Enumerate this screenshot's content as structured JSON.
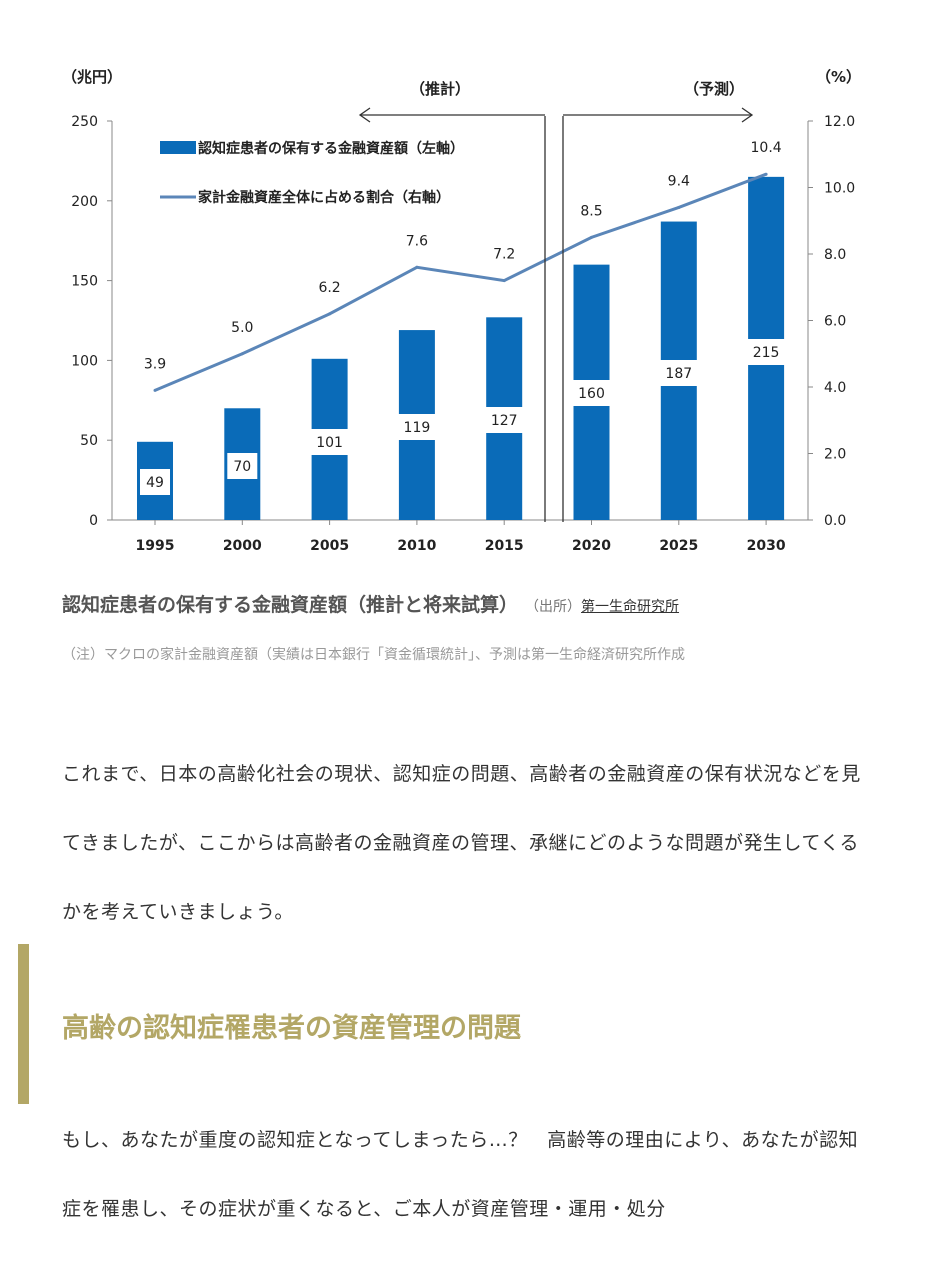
{
  "chart_data": {
    "type": "bar+line",
    "categories": [
      "1995",
      "2000",
      "2005",
      "2010",
      "2015",
      "2020",
      "2025",
      "2030"
    ],
    "series": [
      {
        "name": "認知症患者の保有する金融資産額（左軸）",
        "type": "bar",
        "axis": "left",
        "values": [
          49,
          70,
          101,
          119,
          127,
          160,
          187,
          215
        ],
        "color": "#0a6bb8"
      },
      {
        "name": "家計金融資産全体に占める割合（右軸）",
        "type": "line",
        "axis": "right",
        "values": [
          3.9,
          5.0,
          6.2,
          7.6,
          7.2,
          8.5,
          9.4,
          10.4
        ],
        "color": "#5b86b8"
      }
    ],
    "left_axis": {
      "label": "（兆円）",
      "ylim": [
        0,
        250
      ],
      "ticks": [
        "0",
        "50",
        "100",
        "150",
        "200",
        "250"
      ]
    },
    "right_axis": {
      "label": "（%）",
      "ylim": [
        0,
        12
      ],
      "ticks": [
        "0.0",
        "2.0",
        "4.0",
        "6.0",
        "8.0",
        "10.0",
        "12.0"
      ]
    },
    "annotations": {
      "estimate": "（推計）",
      "forecast": "（予測）"
    },
    "bar_labels": [
      "49",
      "70",
      "101",
      "119",
      "127",
      "160",
      "187",
      "215"
    ],
    "line_labels": [
      "3.9",
      "5.0",
      "6.2",
      "7.6",
      "7.2",
      "8.5",
      "9.4",
      "10.4"
    ],
    "legend_position": "top-left"
  },
  "caption": {
    "title": "認知症患者の保有する金融資産額（推計と将来試算）",
    "source_prefix": "（出所）",
    "source_link": "第一生命研究所"
  },
  "note": "（注）マクロの家計金融資産額（実績は日本銀行「資金循環統計」、予測は第一生命経済研究所作成",
  "article": {
    "paragraph1": "これまで、日本の高齢化社会の現状、認知症の問題、高齢者の金融資産の保有状況などを見てきましたが、ここからは高齢者の金融資産の管理、承継にどのような問題が発生してくるかを考えていきましょう。",
    "heading": "高齢の認知症罹患者の資産管理の問題",
    "paragraph2": "もし、あなたが重度の認知症となってしまったら…？　高齢等の理由により、あなたが認知症を罹患し、その症状が重くなると、ご本人が資産管理・運用・処分"
  }
}
